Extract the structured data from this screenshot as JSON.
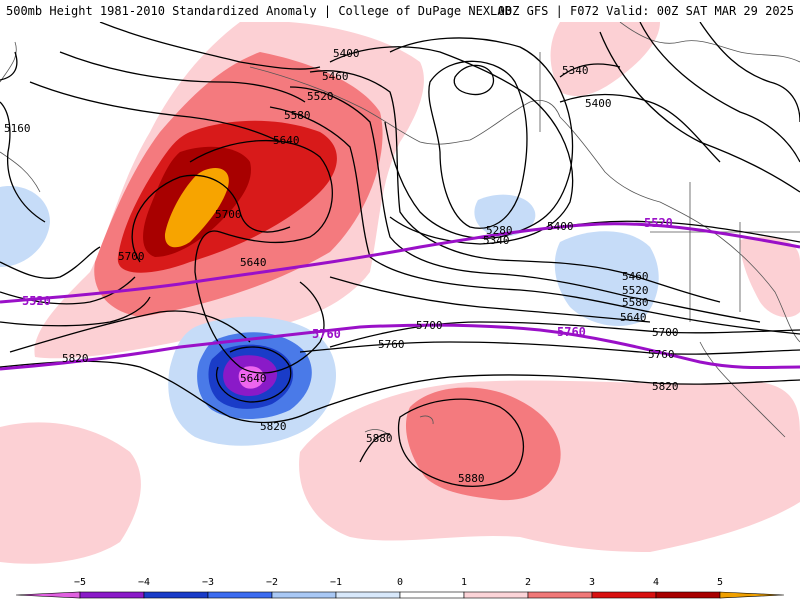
{
  "header": {
    "left": "500mb Height 1981-2010 Standardized Anomaly | College of DuPage NEXLAB",
    "right": "00Z GFS | F072 Valid: 00Z SAT MAR 29 2025"
  },
  "contour_labels": {
    "h5160": "5160",
    "h5280": "5280",
    "h5340a": "5340",
    "h5340b": "5340",
    "h5400a": "5400",
    "h5400b": "5400",
    "h5400c": "5400",
    "h5460a": "5460",
    "h5460b": "5460",
    "h5520a": "5520",
    "h5520b": "5520",
    "h5580a": "5580",
    "h5580b": "5580",
    "h5640a": "5640",
    "h5640b": "5640",
    "h5640c": "5640",
    "h5640d": "5640",
    "h5700a": "5700",
    "h5700b": "5700",
    "h5700c": "5700",
    "h5700d": "5700",
    "h5760a": "5760",
    "h5760b": "5760",
    "h5820a": "5820",
    "h5820b": "5820",
    "h5820c": "5820",
    "h5880a": "5880",
    "h5880b": "5880"
  },
  "highlight_labels": {
    "p5520a": "5520",
    "p5520b": "5520",
    "p5760a": "5760",
    "p5760b": "5760"
  },
  "legend": {
    "ticks": [
      {
        "value": -5,
        "label": "−5"
      },
      {
        "value": -4,
        "label": "−4"
      },
      {
        "value": -3,
        "label": "−3"
      },
      {
        "value": -2,
        "label": "−2"
      },
      {
        "value": -1,
        "label": "−1"
      },
      {
        "value": 0,
        "label": "0"
      },
      {
        "value": 1,
        "label": "1"
      },
      {
        "value": 2,
        "label": "2"
      },
      {
        "value": 3,
        "label": "3"
      },
      {
        "value": 4,
        "label": "4"
      },
      {
        "value": 5,
        "label": "5"
      }
    ],
    "colors": [
      "#e060e0",
      "#8a1ac8",
      "#1a3cc8",
      "#3c6cf0",
      "#a9c8f4",
      "#d8e8fa",
      "#ffffff",
      "#fcd4d8",
      "#f07878",
      "#d81010",
      "#a80000",
      "#f0a000"
    ]
  },
  "colors": {
    "neg1": "#c6dcf8",
    "neg2": "#4a7ae8",
    "neg3": "#1a3cc8",
    "neg4": "#8a1ac8",
    "neg5": "#ee66ee",
    "pos1": "#fcd0d4",
    "pos2": "#f47a7e",
    "pos3": "#d81a1a",
    "pos4": "#a80000",
    "pos5": "#f7a400",
    "highlight": "#9a10c8"
  }
}
